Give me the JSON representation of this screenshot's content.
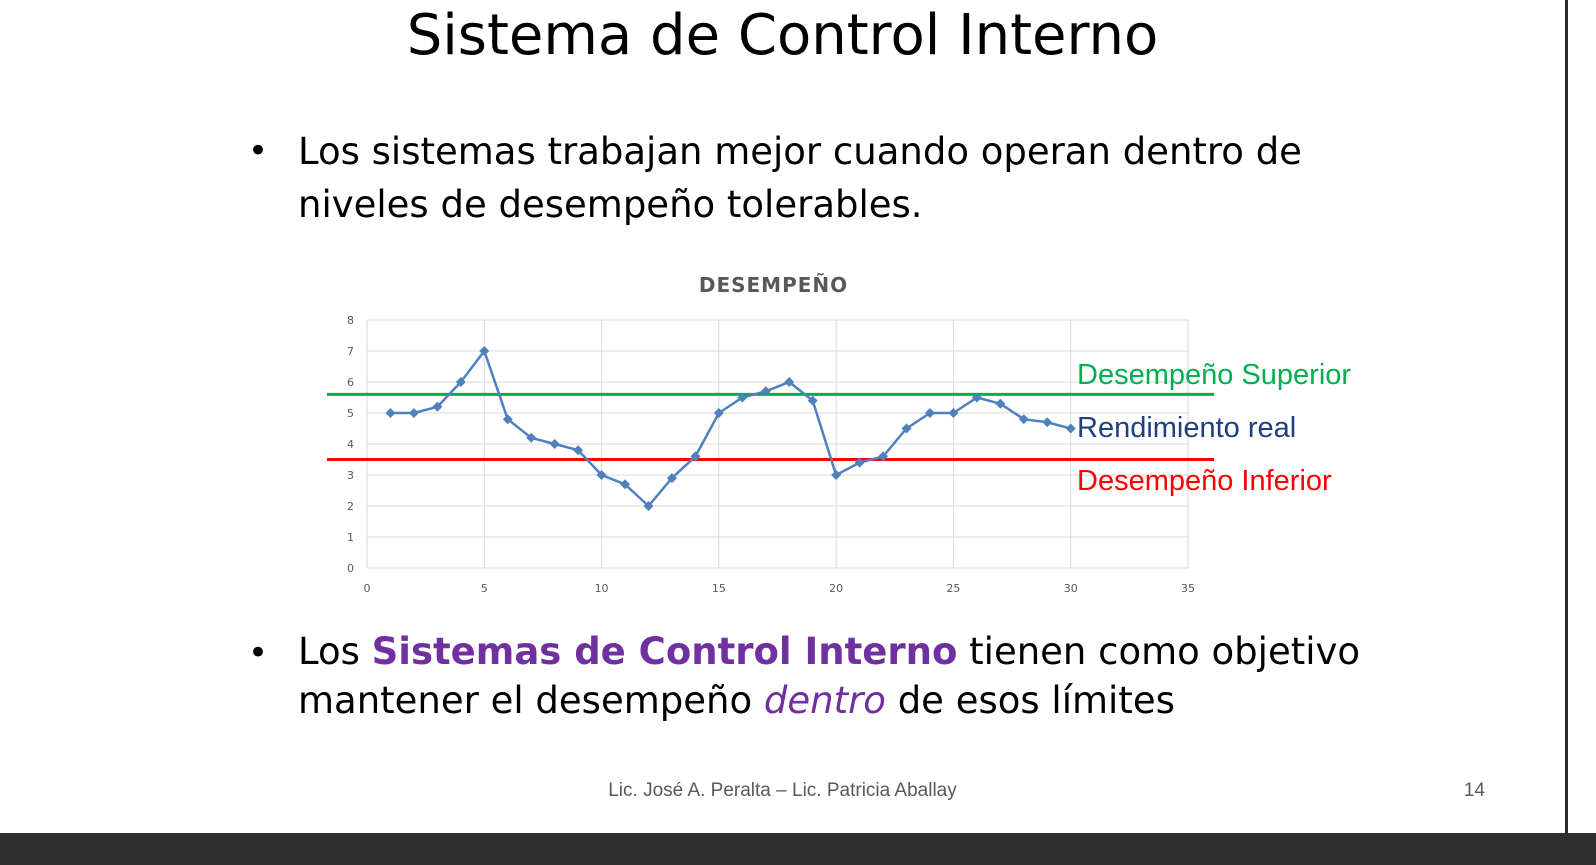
{
  "slide": {
    "title": "Sistema de Control Interno",
    "bullet1": "Los sistemas trabajan mejor cuando operan dentro de niveles de desempeño tolerables.",
    "bullet2": {
      "pre": "Los ",
      "highlight": "Sistemas de Control Interno",
      "mid": " tienen como objetivo mantener el desempeño ",
      "emphasis": "dentro",
      "post": " de esos límites"
    },
    "bullet_glyph": "•",
    "footer": "Lic. José A. Peralta – Lic. Patricia Aballay",
    "page_number": "14"
  },
  "colors": {
    "series": "#4f81bd",
    "upper": "#00b050",
    "lower": "#ff0000",
    "real_label": "#1f3f7f",
    "highlight": "#7030a0"
  },
  "chart_data": {
    "type": "scatter",
    "title": "DESEMPEÑO",
    "xlim": [
      0,
      35
    ],
    "ylim": [
      0,
      8
    ],
    "xticks": [
      0,
      5,
      10,
      15,
      20,
      25,
      30,
      35
    ],
    "yticks": [
      0,
      1,
      2,
      3,
      4,
      5,
      6,
      7,
      8
    ],
    "grid": true,
    "series": [
      {
        "name": "Rendimiento real",
        "marker": "diamond",
        "line": true,
        "x": [
          1,
          2,
          3,
          4,
          5,
          6,
          7,
          8,
          9,
          10,
          11,
          12,
          13,
          14,
          15,
          16,
          17,
          18,
          19,
          20,
          21,
          22,
          23,
          24,
          25,
          26,
          27,
          28,
          29,
          30
        ],
        "y": [
          5,
          5,
          5.2,
          6,
          7,
          4.8,
          4.2,
          4,
          3.8,
          3,
          2.7,
          2,
          2.9,
          3.6,
          5,
          5.5,
          5.7,
          6,
          5.4,
          3,
          3.4,
          3.6,
          4.5,
          5,
          5,
          5.5,
          5.3,
          4.8,
          4.7,
          4.5
        ]
      }
    ],
    "reference_lines": [
      {
        "name": "Desempeño Superior",
        "y": 5.6
      },
      {
        "name": "Desempeño Inferior",
        "y": 3.5
      }
    ]
  }
}
